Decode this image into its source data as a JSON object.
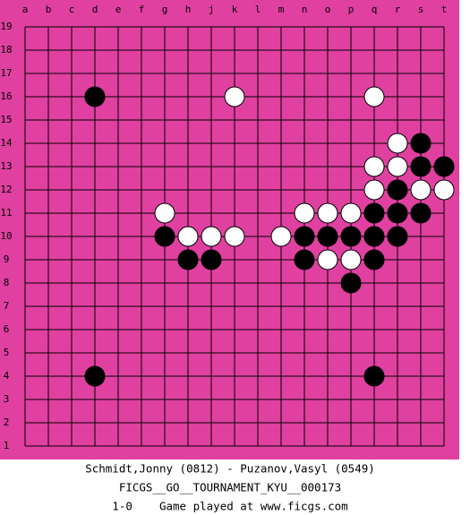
{
  "board": {
    "columns": [
      "a",
      "b",
      "c",
      "d",
      "e",
      "f",
      "g",
      "h",
      "j",
      "k",
      "l",
      "m",
      "n",
      "o",
      "p",
      "q",
      "r",
      "s",
      "t"
    ],
    "rows": [
      19,
      18,
      17,
      16,
      15,
      14,
      13,
      12,
      11,
      10,
      9,
      8,
      7,
      6,
      5,
      4,
      3,
      2,
      1
    ],
    "stones": [
      {
        "color": "black",
        "col": "d",
        "row": 16
      },
      {
        "color": "white",
        "col": "k",
        "row": 16
      },
      {
        "color": "white",
        "col": "q",
        "row": 16
      },
      {
        "color": "white",
        "col": "r",
        "row": 14
      },
      {
        "color": "black",
        "col": "s",
        "row": 14
      },
      {
        "color": "white",
        "col": "q",
        "row": 13
      },
      {
        "color": "white",
        "col": "r",
        "row": 13
      },
      {
        "color": "black",
        "col": "s",
        "row": 13
      },
      {
        "color": "black",
        "col": "t",
        "row": 13
      },
      {
        "color": "white",
        "col": "q",
        "row": 12
      },
      {
        "color": "black",
        "col": "r",
        "row": 12
      },
      {
        "color": "white",
        "col": "s",
        "row": 12
      },
      {
        "color": "white",
        "col": "t",
        "row": 12
      },
      {
        "color": "white",
        "col": "g",
        "row": 11
      },
      {
        "color": "white",
        "col": "n",
        "row": 11
      },
      {
        "color": "white",
        "col": "o",
        "row": 11
      },
      {
        "color": "white",
        "col": "p",
        "row": 11
      },
      {
        "color": "black",
        "col": "q",
        "row": 11
      },
      {
        "color": "black",
        "col": "r",
        "row": 11
      },
      {
        "color": "black",
        "col": "s",
        "row": 11
      },
      {
        "color": "black",
        "col": "g",
        "row": 10
      },
      {
        "color": "white",
        "col": "h",
        "row": 10
      },
      {
        "color": "white",
        "col": "j",
        "row": 10
      },
      {
        "color": "white",
        "col": "k",
        "row": 10
      },
      {
        "color": "white",
        "col": "m",
        "row": 10
      },
      {
        "color": "black",
        "col": "n",
        "row": 10
      },
      {
        "color": "black",
        "col": "o",
        "row": 10
      },
      {
        "color": "black",
        "col": "p",
        "row": 10
      },
      {
        "color": "black",
        "col": "q",
        "row": 10
      },
      {
        "color": "black",
        "col": "r",
        "row": 10
      },
      {
        "color": "black",
        "col": "h",
        "row": 9
      },
      {
        "color": "black",
        "col": "j",
        "row": 9
      },
      {
        "color": "black",
        "col": "n",
        "row": 9
      },
      {
        "color": "white",
        "col": "o",
        "row": 9
      },
      {
        "color": "white",
        "col": "p",
        "row": 9
      },
      {
        "color": "black",
        "col": "q",
        "row": 9
      },
      {
        "color": "black",
        "col": "p",
        "row": 8
      },
      {
        "color": "black",
        "col": "d",
        "row": 4
      },
      {
        "color": "black",
        "col": "q",
        "row": 4
      }
    ]
  },
  "caption": {
    "players": "Schmidt,Jonny (0812) - Puzanov,Vasyl (0549)",
    "event": "FICGS__GO__TOURNAMENT_KYU__000173",
    "result": "1-0    Game played at www.ficgs.com"
  }
}
